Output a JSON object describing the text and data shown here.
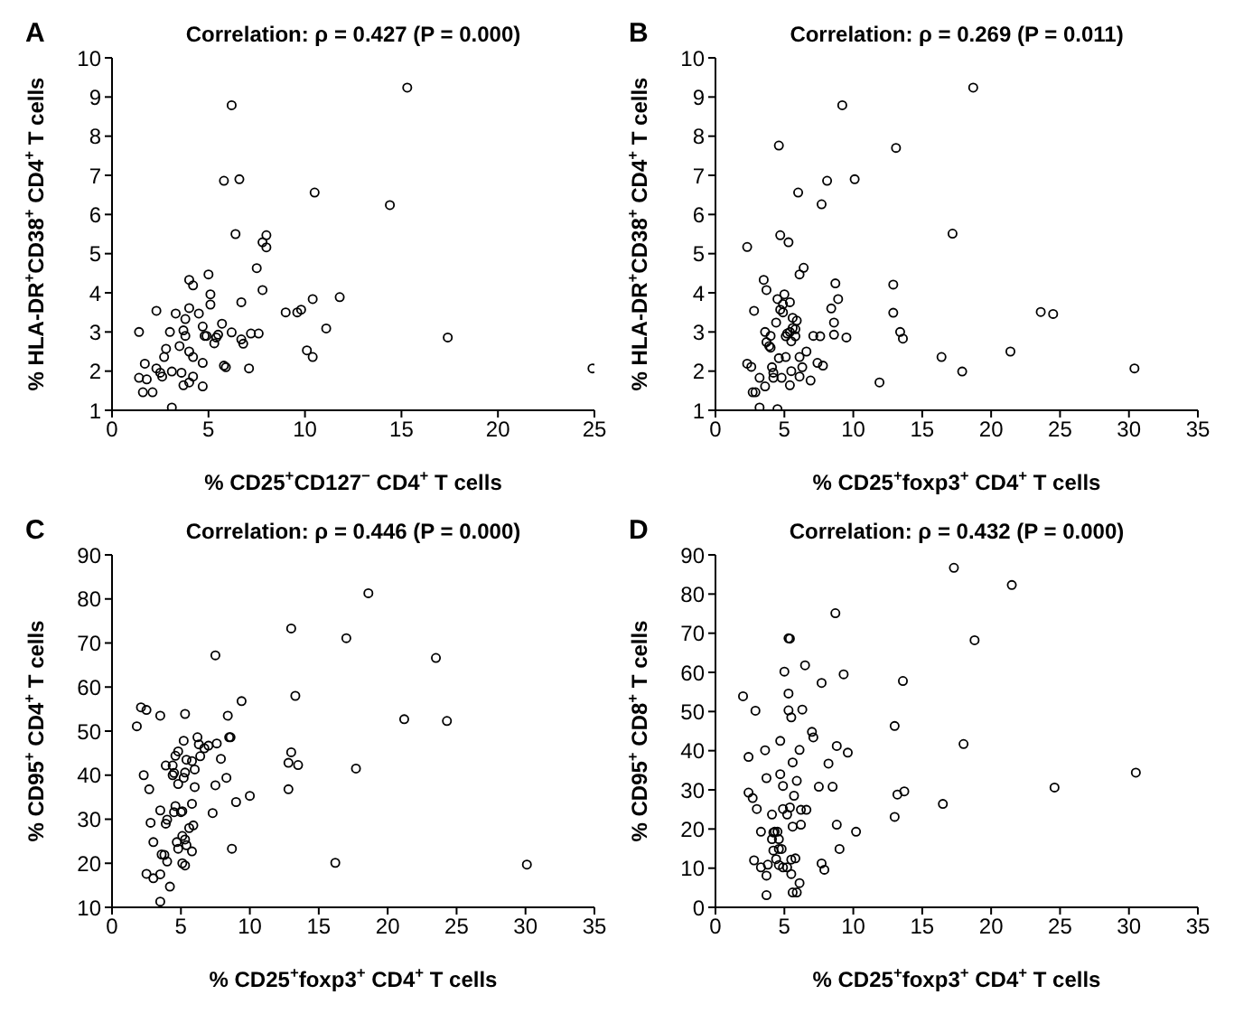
{
  "chart_data": [
    {
      "type": "scatter",
      "title": "Correlation: ρ = 0.427 (P = 0.000)",
      "annotations": [
        "A"
      ],
      "xlabel": "% CD25$^{+}$CD127$^{−}$ CD4$^{+}$ T cells",
      "ylabel": "% HLA-DR$^{+}$CD38$^{+}$ CD4$^{+}$ T cells",
      "xlim": [
        0,
        25
      ],
      "xticks": [
        0,
        5,
        10,
        15,
        20,
        25
      ],
      "ylim": [
        1,
        10
      ],
      "yticks": [
        1,
        2,
        3,
        4,
        5,
        6,
        7,
        8,
        9,
        10
      ],
      "grid": false,
      "legend": false,
      "marker": "circle",
      "series": [
        {
          "color": "#000000",
          "x": [
            1.4,
            1.4,
            1.6,
            1.7,
            1.8,
            2.1,
            2.3,
            2.3,
            2.5,
            2.6,
            2.7,
            2.8,
            3.0,
            3.1,
            3.1,
            3.3,
            3.5,
            3.6,
            3.7,
            3.7,
            3.8,
            3.8,
            4.0,
            4.0,
            4.0,
            4.2,
            4.0,
            4.2,
            4.2,
            4.5,
            4.7,
            4.7,
            4.7,
            4.8,
            4.9,
            5.0,
            5.1,
            5.1,
            5.3,
            5.4,
            5.5,
            5.7,
            5.8,
            5.9,
            5.8,
            6.2,
            6.2,
            6.4,
            6.6,
            6.7,
            6.7,
            6.8,
            7.1,
            7.2,
            7.5,
            7.6,
            7.8,
            7.8,
            8.0,
            8.0,
            9.0,
            9.6,
            9.8,
            10.1,
            10.4,
            10.4,
            10.5,
            11.1,
            11.8,
            14.4,
            15.3,
            17.4,
            24.9
          ],
          "values": [
            3.0,
            1.83,
            1.46,
            2.19,
            1.79,
            1.46,
            3.54,
            2.07,
            1.96,
            1.86,
            2.36,
            2.57,
            3.0,
            1.99,
            1.07,
            3.47,
            2.64,
            1.96,
            3.04,
            1.64,
            3.33,
            2.9,
            1.71,
            3.61,
            4.33,
            4.19,
            2.5,
            2.36,
            1.86,
            3.47,
            3.14,
            2.21,
            1.61,
            2.9,
            2.9,
            4.47,
            3.96,
            3.7,
            2.71,
            2.86,
            2.93,
            3.21,
            2.14,
            2.1,
            6.86,
            8.79,
            2.99,
            5.5,
            6.9,
            2.81,
            3.76,
            2.7,
            2.07,
            2.96,
            4.63,
            2.96,
            5.29,
            4.07,
            5.47,
            5.16,
            3.5,
            3.5,
            3.57,
            2.53,
            2.36,
            3.84,
            6.56,
            3.09,
            3.89,
            6.24,
            9.24,
            2.86,
            2.07
          ]
        }
      ]
    },
    {
      "type": "scatter",
      "title": "Correlation: ρ = 0.269 (P = 0.011)",
      "annotations": [
        "B"
      ],
      "xlabel": "% CD25$^{+}$foxp3$^{+}$ CD4$^{+}$ T cells",
      "ylabel": "% HLA-DR$^{+}$CD38$^{+}$ CD4$^{+}$ T cells",
      "xlim": [
        0,
        35
      ],
      "xticks": [
        0,
        5,
        10,
        15,
        20,
        25,
        30,
        35
      ],
      "ylim": [
        1,
        10
      ],
      "yticks": [
        1,
        2,
        3,
        4,
        5,
        6,
        7,
        8,
        9,
        10
      ],
      "grid": false,
      "legend": false,
      "marker": "circle",
      "series": [
        {
          "color": "#000000",
          "x": [
            2.3,
            2.3,
            2.6,
            2.7,
            2.9,
            2.8,
            3.2,
            3.2,
            3.5,
            3.6,
            3.7,
            3.6,
            3.7,
            3.9,
            4.0,
            4.0,
            4.1,
            4.2,
            4.2,
            4.4,
            4.5,
            4.6,
            4.5,
            4.6,
            4.7,
            4.7,
            4.8,
            4.9,
            4.9,
            5.0,
            5.1,
            5.1,
            5.2,
            5.4,
            5.3,
            5.4,
            5.4,
            5.5,
            5.6,
            5.5,
            5.6,
            5.8,
            5.8,
            5.9,
            6.0,
            6.1,
            6.1,
            6.1,
            6.3,
            6.4,
            6.6,
            6.9,
            7.1,
            7.6,
            7.7,
            7.4,
            7.8,
            8.1,
            8.4,
            8.6,
            8.6,
            8.7,
            8.9,
            9.2,
            9.5,
            10.1,
            11.9,
            12.9,
            12.9,
            13.1,
            13.4,
            13.6,
            16.4,
            17.2,
            17.9,
            18.7,
            21.4,
            23.6,
            24.5,
            30.4
          ],
          "values": [
            5.17,
            2.19,
            2.11,
            1.46,
            1.46,
            3.54,
            1.83,
            1.07,
            4.33,
            1.61,
            4.07,
            3.0,
            2.74,
            2.64,
            2.6,
            2.9,
            2.1,
            1.96,
            1.83,
            3.24,
            3.84,
            7.76,
            1.03,
            2.33,
            5.47,
            3.57,
            1.83,
            3.5,
            3.71,
            3.96,
            2.89,
            2.36,
            2.96,
            3.76,
            5.29,
            1.64,
            3.0,
            2.76,
            3.1,
            2.0,
            3.36,
            2.89,
            3.07,
            3.29,
            6.56,
            2.36,
            1.86,
            4.47,
            2.1,
            4.64,
            2.5,
            1.76,
            2.9,
            2.89,
            6.26,
            2.21,
            2.14,
            6.86,
            3.6,
            3.24,
            2.93,
            4.24,
            3.84,
            8.79,
            2.86,
            6.9,
            1.71,
            4.21,
            3.49,
            7.7,
            3.0,
            2.83,
            2.36,
            5.51,
            1.99,
            9.24,
            2.5,
            3.51,
            3.46,
            2.07
          ]
        }
      ]
    },
    {
      "type": "scatter",
      "title": "Correlation: ρ = 0.446 (P = 0.000)",
      "annotations": [
        "C"
      ],
      "xlabel": "% CD25$^{+}$foxp3$^{+}$ CD4$^{+}$ T cells",
      "ylabel": "% CD95$^{+}$ CD4$^{+}$ T cells",
      "xlim": [
        0,
        35
      ],
      "xticks": [
        0,
        5,
        10,
        15,
        20,
        25,
        30,
        35
      ],
      "ylim": [
        10,
        90
      ],
      "yticks": [
        10,
        20,
        30,
        40,
        50,
        60,
        70,
        80,
        90
      ],
      "grid": false,
      "legend": false,
      "marker": "circle",
      "series": [
        {
          "color": "#000000",
          "x": [
            1.8,
            2.1,
            2.5,
            2.3,
            2.7,
            2.5,
            2.8,
            3.0,
            3.0,
            3.5,
            3.5,
            3.5,
            3.6,
            3.5,
            3.8,
            3.9,
            3.9,
            4.0,
            4.0,
            4.2,
            4.4,
            4.4,
            4.5,
            4.5,
            4.6,
            4.6,
            4.7,
            4.8,
            4.8,
            4.8,
            5.0,
            5.1,
            5.1,
            5.1,
            5.2,
            5.2,
            5.3,
            5.3,
            5.3,
            5.3,
            5.4,
            5.4,
            5.6,
            5.8,
            5.8,
            5.8,
            5.9,
            6.0,
            6.0,
            6.2,
            6.3,
            6.4,
            6.7,
            7.0,
            7.3,
            7.5,
            7.5,
            7.6,
            7.9,
            8.3,
            8.4,
            8.5,
            8.6,
            8.7,
            9.0,
            9.4,
            10.0,
            13.0,
            12.8,
            13.0,
            12.8,
            13.3,
            13.5,
            16.2,
            17.0,
            17.7,
            18.6,
            21.2,
            23.5,
            24.3,
            30.1
          ],
          "values": [
            51.1,
            55.4,
            54.8,
            40.0,
            36.8,
            17.6,
            29.2,
            24.8,
            16.6,
            17.5,
            53.5,
            32.0,
            22.0,
            11.3,
            21.9,
            42.2,
            29.0,
            29.9,
            20.4,
            14.7,
            42.2,
            40.0,
            40.5,
            31.6,
            33.0,
            44.4,
            24.8,
            38.0,
            45.4,
            23.3,
            31.6,
            31.8,
            20.0,
            26.2,
            39.4,
            47.8,
            40.6,
            53.9,
            19.5,
            25.4,
            43.5,
            24.1,
            28.0,
            22.7,
            43.2,
            33.5,
            28.6,
            41.3,
            37.3,
            48.6,
            47.0,
            44.3,
            46.1,
            46.7,
            31.4,
            37.7,
            67.2,
            47.2,
            43.7,
            39.4,
            53.5,
            48.6,
            48.6,
            23.3,
            33.9,
            56.8,
            35.3,
            73.3,
            42.8,
            45.2,
            36.8,
            58.0,
            42.3,
            20.1,
            71.1,
            41.5,
            81.3,
            52.7,
            66.6,
            52.3,
            19.7
          ]
        }
      ]
    },
    {
      "type": "scatter",
      "title": "Correlation: ρ = 0.432 (P = 0.000)",
      "annotations": [
        "D"
      ],
      "xlabel": "% CD25$^{+}$foxp3$^{+}$ CD4$^{+}$ T cells",
      "ylabel": "% CD95$^{+}$ CD8$^{+}$ T cells",
      "xlim": [
        0,
        35
      ],
      "xticks": [
        0,
        5,
        10,
        15,
        20,
        25,
        30,
        35
      ],
      "ylim": [
        0,
        90
      ],
      "yticks": [
        0,
        10,
        20,
        30,
        40,
        50,
        60,
        70,
        80,
        90
      ],
      "grid": false,
      "legend": false,
      "marker": "circle",
      "series": [
        {
          "color": "#000000",
          "x": [
            2.0,
            2.4,
            2.4,
            2.7,
            2.8,
            2.9,
            3.0,
            3.3,
            3.3,
            3.6,
            3.7,
            3.7,
            3.7,
            3.8,
            4.1,
            4.1,
            4.2,
            4.2,
            4.3,
            4.4,
            4.5,
            4.6,
            4.6,
            4.6,
            4.7,
            4.7,
            4.8,
            4.9,
            4.9,
            4.9,
            5.0,
            5.2,
            5.2,
            5.3,
            5.3,
            5.3,
            5.4,
            5.4,
            5.5,
            5.5,
            5.5,
            5.6,
            5.6,
            5.6,
            5.7,
            5.8,
            5.9,
            5.9,
            6.1,
            6.1,
            6.2,
            6.2,
            6.3,
            6.5,
            6.6,
            7.0,
            7.1,
            7.5,
            7.7,
            7.7,
            7.9,
            8.2,
            8.5,
            8.7,
            8.8,
            8.8,
            9.0,
            9.3,
            9.6,
            10.2,
            13.0,
            13.0,
            13.2,
            13.6,
            13.7,
            16.5,
            17.3,
            18.0,
            18.8,
            21.5,
            24.6,
            30.5
          ],
          "values": [
            53.9,
            38.4,
            29.3,
            27.9,
            12.0,
            50.2,
            25.1,
            19.3,
            10.2,
            40.1,
            33.0,
            8.1,
            3.1,
            10.9,
            17.4,
            23.7,
            19.1,
            14.5,
            19.3,
            12.3,
            19.3,
            17.4,
            10.8,
            14.9,
            42.5,
            34.0,
            14.9,
            25.1,
            10.2,
            31.0,
            60.2,
            23.7,
            10.2,
            54.6,
            50.3,
            68.7,
            68.6,
            25.5,
            48.5,
            8.5,
            12.2,
            20.6,
            37.0,
            3.8,
            28.5,
            12.5,
            3.8,
            32.3,
            6.2,
            40.2,
            21.1,
            24.9,
            50.5,
            61.8,
            24.9,
            44.8,
            43.4,
            30.8,
            11.2,
            57.3,
            9.6,
            36.7,
            30.8,
            75.1,
            41.2,
            21.1,
            14.9,
            59.5,
            39.5,
            19.3,
            46.3,
            23.1,
            28.8,
            57.8,
            29.6,
            26.4,
            86.7,
            41.7,
            68.2,
            82.3,
            30.6,
            34.4
          ]
        }
      ]
    }
  ]
}
